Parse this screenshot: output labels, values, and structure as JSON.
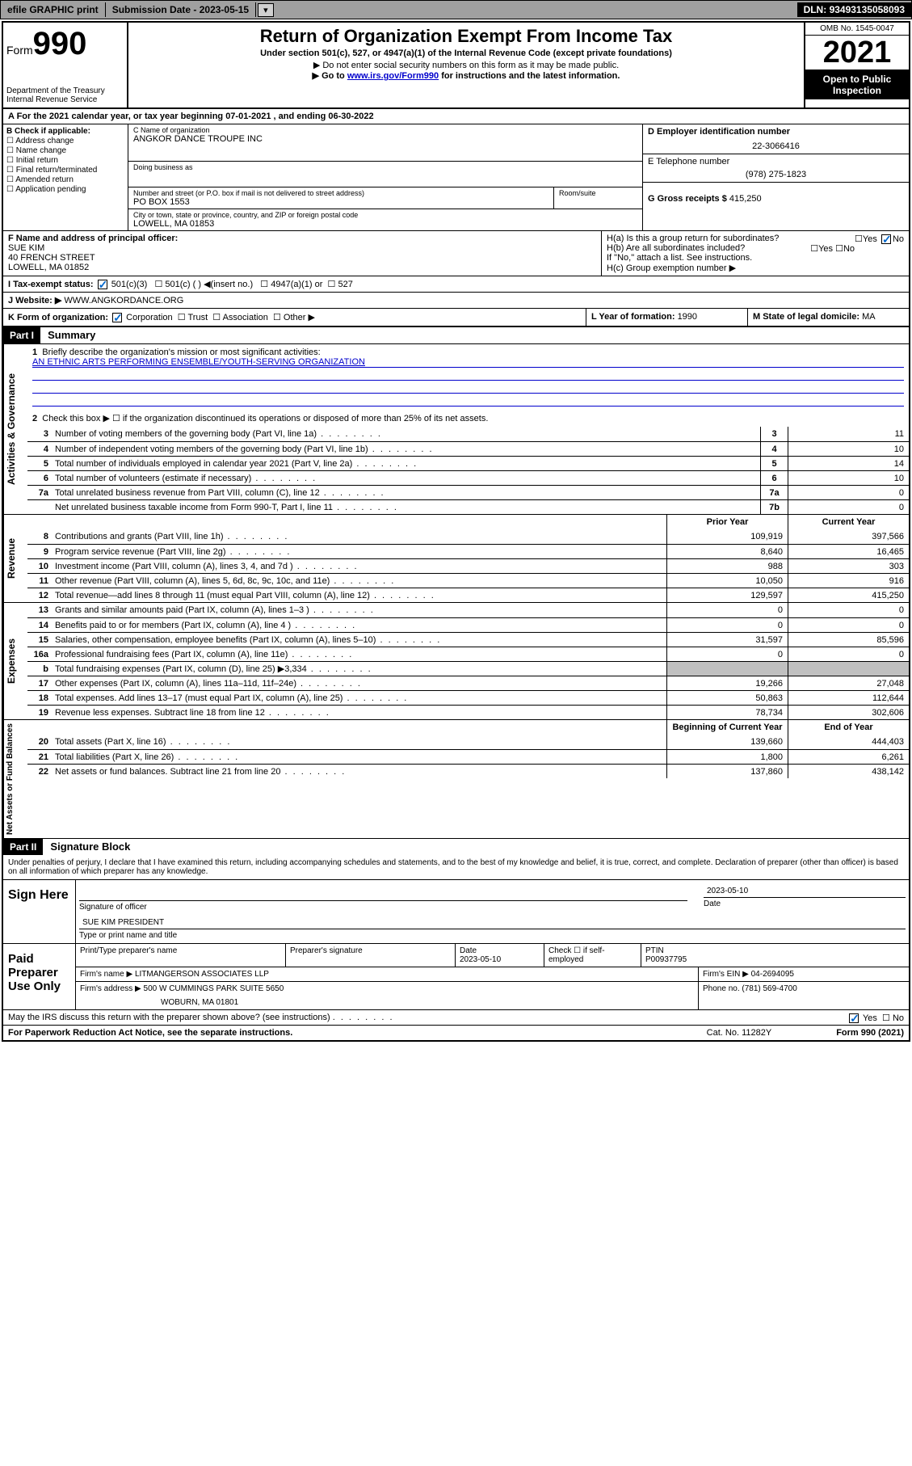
{
  "topbar": {
    "efile": "efile GRAPHIC print",
    "submission_label": "Submission Date - ",
    "submission_date": "2023-05-15",
    "dln_label": "DLN: ",
    "dln": "93493135058093"
  },
  "header": {
    "form_prefix": "Form",
    "form_num": "990",
    "dept": "Department of the Treasury\nInternal Revenue Service",
    "title": "Return of Organization Exempt From Income Tax",
    "sub1": "Under section 501(c), 527, or 4947(a)(1) of the Internal Revenue Code (except private foundations)",
    "sub2": "▶ Do not enter social security numbers on this form as it may be made public.",
    "sub3_pre": "▶ Go to ",
    "sub3_link": "www.irs.gov/Form990",
    "sub3_post": " for instructions and the latest information.",
    "omb": "OMB No. 1545-0047",
    "year": "2021",
    "open": "Open to Public Inspection"
  },
  "rowA": {
    "text": "A For the 2021 calendar year, or tax year beginning 07-01-2021    , and ending 06-30-2022"
  },
  "colB": {
    "label": "B Check if applicable:",
    "opts": [
      "Address change",
      "Name change",
      "Initial return",
      "Final return/terminated",
      "Amended return",
      "Application pending"
    ]
  },
  "colC": {
    "name_label": "C Name of organization",
    "name": "ANGKOR DANCE TROUPE INC",
    "dba_label": "Doing business as",
    "dba": "",
    "addr_label": "Number and street (or P.O. box if mail is not delivered to street address)",
    "room_label": "Room/suite",
    "addr": "PO BOX 1553",
    "city_label": "City or town, state or province, country, and ZIP or foreign postal code",
    "city": "LOWELL, MA  01853"
  },
  "colD": {
    "ein_label": "D Employer identification number",
    "ein": "22-3066416",
    "tel_label": "E Telephone number",
    "tel": "(978) 275-1823",
    "gross_label": "G Gross receipts $ ",
    "gross": "415,250"
  },
  "rowF": {
    "label": "F  Name and address of principal officer:",
    "name": "SUE KIM",
    "addr1": "40 FRENCH STREET",
    "addr2": "LOWELL, MA  01852"
  },
  "rowH": {
    "a": "H(a)  Is this a group return for subordinates?",
    "a_yes": "Yes",
    "a_no": "No",
    "b": "H(b)  Are all subordinates included?",
    "b_yes": "Yes",
    "b_no": "No",
    "b_note": "If \"No,\" attach a list. See instructions.",
    "c": "H(c)  Group exemption number ▶"
  },
  "rowI": {
    "label": "I    Tax-exempt status:",
    "opts": [
      "501(c)(3)",
      "501(c) (   ) ◀(insert no.)",
      "4947(a)(1) or",
      "527"
    ]
  },
  "rowJ": {
    "label": "J   Website: ▶ ",
    "val": "WWW.ANGKORDANCE.ORG"
  },
  "rowK": {
    "k": "K Form of organization:",
    "opts": [
      "Corporation",
      "Trust",
      "Association",
      "Other ▶"
    ],
    "l_label": "L Year of formation: ",
    "l_val": "1990",
    "m_label": "M State of legal domicile: ",
    "m_val": "MA"
  },
  "part1": {
    "hdr": "Part I",
    "title": "Summary",
    "q1": "Briefly describe the organization's mission or most significant activities:",
    "mission": "AN ETHNIC ARTS PERFORMING ENSEMBLE/YOUTH-SERVING ORGANIZATION",
    "q2": "Check this box ▶ ☐  if the organization discontinued its operations or disposed of more than 25% of its net assets.",
    "side_gov": "Activities & Governance",
    "side_rev": "Revenue",
    "side_exp": "Expenses",
    "side_net": "Net Assets or Fund Balances",
    "col_prior": "Prior Year",
    "col_curr": "Current Year",
    "col_begin": "Beginning of Current Year",
    "col_end": "End of Year",
    "lines_gov": [
      {
        "n": "3",
        "t": "Number of voting members of the governing body (Part VI, line 1a)",
        "box": "3",
        "v": "11"
      },
      {
        "n": "4",
        "t": "Number of independent voting members of the governing body (Part VI, line 1b)",
        "box": "4",
        "v": "10"
      },
      {
        "n": "5",
        "t": "Total number of individuals employed in calendar year 2021 (Part V, line 2a)",
        "box": "5",
        "v": "14"
      },
      {
        "n": "6",
        "t": "Total number of volunteers (estimate if necessary)",
        "box": "6",
        "v": "10"
      },
      {
        "n": "7a",
        "t": "Total unrelated business revenue from Part VIII, column (C), line 12",
        "box": "7a",
        "v": "0"
      },
      {
        "n": "",
        "t": "Net unrelated business taxable income from Form 990-T, Part I, line 11",
        "box": "7b",
        "v": "0"
      }
    ],
    "lines_rev": [
      {
        "n": "8",
        "t": "Contributions and grants (Part VIII, line 1h)",
        "p": "109,919",
        "c": "397,566"
      },
      {
        "n": "9",
        "t": "Program service revenue (Part VIII, line 2g)",
        "p": "8,640",
        "c": "16,465"
      },
      {
        "n": "10",
        "t": "Investment income (Part VIII, column (A), lines 3, 4, and 7d )",
        "p": "988",
        "c": "303"
      },
      {
        "n": "11",
        "t": "Other revenue (Part VIII, column (A), lines 5, 6d, 8c, 9c, 10c, and 11e)",
        "p": "10,050",
        "c": "916"
      },
      {
        "n": "12",
        "t": "Total revenue—add lines 8 through 11 (must equal Part VIII, column (A), line 12)",
        "p": "129,597",
        "c": "415,250"
      }
    ],
    "lines_exp": [
      {
        "n": "13",
        "t": "Grants and similar amounts paid (Part IX, column (A), lines 1–3 )",
        "p": "0",
        "c": "0"
      },
      {
        "n": "14",
        "t": "Benefits paid to or for members (Part IX, column (A), line 4 )",
        "p": "0",
        "c": "0"
      },
      {
        "n": "15",
        "t": "Salaries, other compensation, employee benefits (Part IX, column (A), lines 5–10)",
        "p": "31,597",
        "c": "85,596"
      },
      {
        "n": "16a",
        "t": "Professional fundraising fees (Part IX, column (A), line 11e)",
        "p": "0",
        "c": "0"
      },
      {
        "n": "b",
        "t": "Total fundraising expenses (Part IX, column (D), line 25) ▶3,334",
        "p": "",
        "c": "",
        "shade": true
      },
      {
        "n": "17",
        "t": "Other expenses (Part IX, column (A), lines 11a–11d, 11f–24e)",
        "p": "19,266",
        "c": "27,048"
      },
      {
        "n": "18",
        "t": "Total expenses. Add lines 13–17 (must equal Part IX, column (A), line 25)",
        "p": "50,863",
        "c": "112,644"
      },
      {
        "n": "19",
        "t": "Revenue less expenses. Subtract line 18 from line 12",
        "p": "78,734",
        "c": "302,606"
      }
    ],
    "lines_net": [
      {
        "n": "20",
        "t": "Total assets (Part X, line 16)",
        "p": "139,660",
        "c": "444,403"
      },
      {
        "n": "21",
        "t": "Total liabilities (Part X, line 26)",
        "p": "1,800",
        "c": "6,261"
      },
      {
        "n": "22",
        "t": "Net assets or fund balances. Subtract line 21 from line 20",
        "p": "137,860",
        "c": "438,142"
      }
    ]
  },
  "part2": {
    "hdr": "Part II",
    "title": "Signature Block",
    "intro": "Under penalties of perjury, I declare that I have examined this return, including accompanying schedules and statements, and to the best of my knowledge and belief, it is true, correct, and complete. Declaration of preparer (other than officer) is based on all information of which preparer has any knowledge.",
    "sign_here": "Sign Here",
    "sig_officer": "Signature of officer",
    "sig_date_label": "Date",
    "sig_date": "2023-05-10",
    "officer_name": "SUE KIM PRESIDENT",
    "type_name": "Type or print name and title",
    "paid": "Paid Preparer Use Only",
    "prep_name_label": "Print/Type preparer's name",
    "prep_sig_label": "Preparer's signature",
    "prep_date_label": "Date",
    "prep_date": "2023-05-10",
    "prep_check": "Check ☐ if self-employed",
    "ptin_label": "PTIN",
    "ptin": "P00937795",
    "firm_name_label": "Firm's name    ▶ ",
    "firm_name": "LITMANGERSON ASSOCIATES LLP",
    "firm_ein_label": "Firm's EIN ▶ ",
    "firm_ein": "04-2694095",
    "firm_addr_label": "Firm's address ▶ ",
    "firm_addr1": "500 W CUMMINGS PARK SUITE 5650",
    "firm_addr2": "WOBURN, MA  01801",
    "firm_phone_label": "Phone no. ",
    "firm_phone": "(781) 569-4700",
    "may_irs": "May the IRS discuss this return with the preparer shown above? (see instructions)",
    "may_yes": "Yes",
    "may_no": "No"
  },
  "footer": {
    "left": "For Paperwork Reduction Act Notice, see the separate instructions.",
    "mid": "Cat. No. 11282Y",
    "right": "Form 990 (2021)"
  },
  "colors": {
    "link": "#0000cc",
    "check": "#0066cc",
    "shade": "#c0c0c0",
    "black": "#000000",
    "white": "#ffffff",
    "topbar": "#a0a0a0"
  }
}
